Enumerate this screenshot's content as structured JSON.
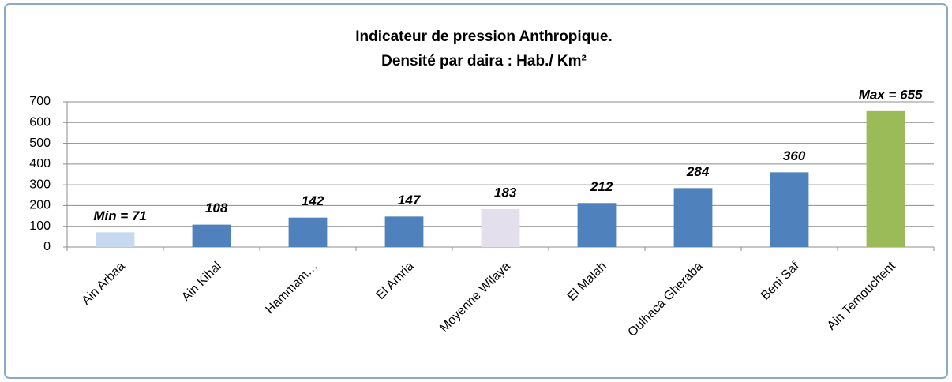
{
  "chart_data": {
    "type": "bar",
    "title": [
      "Indicateur de pression Anthropique.",
      "Densité par daira : Hab./ Km²"
    ],
    "categories": [
      "Ain Arbaa",
      "Ain Kihal",
      "Hammam…",
      "El Amria",
      "Moyenne Wilaya",
      "El Malah",
      "Oulhaca Gheraba",
      "Beni Saf",
      "Ain Temouchent"
    ],
    "values": [
      71,
      108,
      142,
      147,
      183,
      212,
      284,
      360,
      655
    ],
    "value_labels": [
      "Min  =  71",
      "108",
      "142",
      "147",
      "183",
      "212",
      "284",
      "360",
      "Max  =  655"
    ],
    "colors": [
      "#c6d9f1",
      "#4f81bd",
      "#4f81bd",
      "#4f81bd",
      "#e4dfec",
      "#4f81bd",
      "#4f81bd",
      "#4f81bd",
      "#9bbb59"
    ],
    "ylim": [
      0,
      700
    ],
    "yticks": [
      0,
      100,
      200,
      300,
      400,
      500,
      600,
      700
    ],
    "grid": true
  }
}
